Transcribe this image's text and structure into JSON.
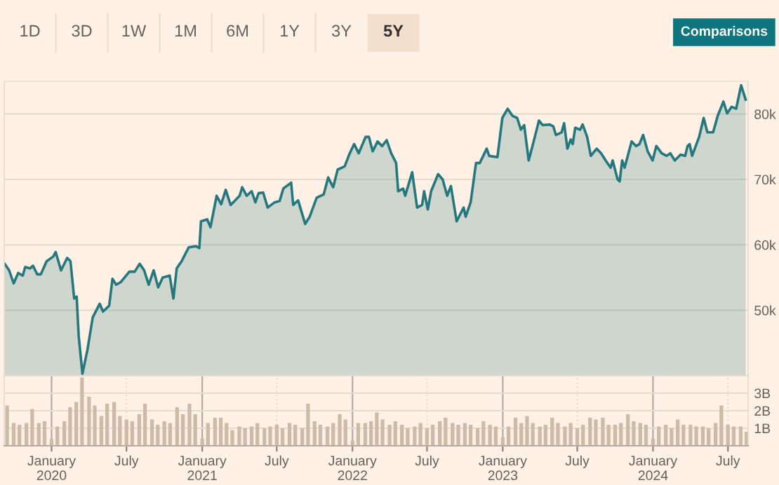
{
  "chart_data": [
    {
      "type": "area",
      "annotations": [
        "1D",
        "3D",
        "1W",
        "1M",
        "6M",
        "1Y",
        "3Y",
        "5Y",
        "Comparisons"
      ],
      "series": [
        {
          "color": "#26787f",
          "x": [
            "2019-09-09",
            "2019-09-20",
            "2019-10-01",
            "2019-10-12",
            "2019-10-23",
            "2019-10-29",
            "2019-11-10",
            "2019-11-17",
            "2019-11-27",
            "2019-12-06",
            "2019-12-20",
            "2020-01-05",
            "2020-01-11",
            "2020-01-24",
            "2020-02-08",
            "2020-02-16",
            "2020-02-25",
            "2020-03-02",
            "2020-03-07",
            "2020-03-16",
            "2020-03-28",
            "2020-04-10",
            "2020-04-27",
            "2020-05-05",
            "2020-05-20",
            "2020-05-28",
            "2020-06-06",
            "2020-06-17",
            "2020-07-08",
            "2020-07-21",
            "2020-08-02",
            "2020-08-13",
            "2020-08-24",
            "2020-09-05",
            "2020-09-16",
            "2020-09-27",
            "2020-10-14",
            "2020-10-23",
            "2020-10-31",
            "2020-11-12",
            "2020-11-29",
            "2020-12-16",
            "2020-12-25",
            "2020-12-29",
            "2021-01-13",
            "2021-01-21",
            "2021-02-05",
            "2021-02-16",
            "2021-02-27",
            "2021-03-11",
            "2021-04-02",
            "2021-04-08",
            "2021-04-19",
            "2021-05-01",
            "2021-05-10",
            "2021-05-18",
            "2021-05-29",
            "2021-06-09",
            "2021-06-26",
            "2021-07-08",
            "2021-07-17",
            "2021-08-05",
            "2021-08-10",
            "2021-08-22",
            "2021-09-08",
            "2021-09-19",
            "2021-10-06",
            "2021-10-23",
            "2021-11-03",
            "2021-11-15",
            "2021-11-26",
            "2021-12-13",
            "2021-12-24",
            "2022-01-05",
            "2022-01-16",
            "2022-02-02",
            "2022-02-10",
            "2022-02-19",
            "2022-03-03",
            "2022-03-14",
            "2022-03-25",
            "2022-04-05",
            "2022-04-17",
            "2022-04-22",
            "2022-05-04",
            "2022-05-09",
            "2022-05-26",
            "2022-06-07",
            "2022-06-19",
            "2022-06-24",
            "2022-07-03",
            "2022-07-11",
            "2022-07-28",
            "2022-08-08",
            "2022-08-19",
            "2022-08-28",
            "2022-09-11",
            "2022-09-28",
            "2022-10-03",
            "2022-10-15",
            "2022-10-28",
            "2022-11-06",
            "2022-11-23",
            "2022-11-29",
            "2022-12-19",
            "2022-12-31",
            "2023-01-13",
            "2023-01-25",
            "2023-02-05",
            "2023-02-14",
            "2023-02-22",
            "2023-03-05",
            "2023-03-17",
            "2023-03-30",
            "2023-04-08",
            "2023-04-25",
            "2023-05-04",
            "2023-05-10",
            "2023-05-24",
            "2023-05-30",
            "2023-06-07",
            "2023-06-15",
            "2023-06-20",
            "2023-06-26",
            "2023-07-08",
            "2023-07-14",
            "2023-07-25",
            "2023-08-03",
            "2023-08-17",
            "2023-08-28",
            "2023-09-08",
            "2023-09-20",
            "2023-09-25",
            "2023-10-07",
            "2023-10-12",
            "2023-10-18",
            "2023-10-24",
            "2023-11-10",
            "2023-11-21",
            "2023-11-29",
            "2023-12-08",
            "2023-12-19",
            "2023-12-31",
            "2024-01-09",
            "2024-01-22",
            "2024-02-03",
            "2024-02-12",
            "2024-02-23",
            "2024-03-08",
            "2024-03-19",
            "2024-03-25",
            "2024-03-30",
            "2024-04-05",
            "2024-04-22",
            "2024-05-03",
            "2024-05-12",
            "2024-05-26",
            "2024-06-06",
            "2024-06-20",
            "2024-06-29",
            "2024-07-10",
            "2024-07-21",
            "2024-08-02",
            "2024-08-13"
          ],
          "values": [
            57100,
            56100,
            54100,
            55700,
            55300,
            56600,
            56400,
            56800,
            55500,
            55500,
            57500,
            58200,
            58900,
            56100,
            58000,
            57500,
            51800,
            52100,
            46000,
            40300,
            43900,
            48900,
            51000,
            49800,
            50700,
            54800,
            53900,
            54300,
            55900,
            55900,
            57100,
            56100,
            53900,
            56100,
            53500,
            55000,
            55300,
            51800,
            56400,
            57500,
            59600,
            59800,
            59500,
            63600,
            63900,
            62700,
            67500,
            66200,
            68400,
            66100,
            67500,
            68800,
            67500,
            68200,
            66500,
            67900,
            68000,
            65700,
            66500,
            66700,
            68600,
            69500,
            66100,
            66800,
            63200,
            64300,
            67200,
            67700,
            70300,
            68800,
            71500,
            72000,
            73800,
            75400,
            74000,
            76500,
            76500,
            74300,
            75800,
            75100,
            76000,
            74000,
            72500,
            68200,
            68600,
            67500,
            71100,
            65700,
            66100,
            68200,
            65400,
            68200,
            70800,
            70000,
            67500,
            69000,
            63600,
            65700,
            64300,
            66500,
            72500,
            72500,
            74700,
            73600,
            73400,
            79400,
            80800,
            79700,
            79400,
            77600,
            78300,
            72900,
            75800,
            79000,
            78300,
            78400,
            78100,
            76800,
            77200,
            78600,
            74700,
            76100,
            75400,
            77900,
            77600,
            78400,
            76500,
            73600,
            74700,
            74000,
            72900,
            71800,
            72900,
            70000,
            69700,
            72900,
            71800,
            75800,
            75100,
            75400,
            76800,
            74300,
            72900,
            75100,
            74000,
            73600,
            74000,
            72900,
            73800,
            73600,
            75100,
            75400,
            73600,
            76500,
            79400,
            77200,
            77200,
            79700,
            81900,
            80100,
            81100,
            80800,
            84400,
            82200
          ]
        }
      ],
      "xlim": [
        "2019-09-08",
        "2024-08-19"
      ],
      "ylim": [
        40000,
        85000
      ],
      "yticks": [
        {
          "value": 50000,
          "label": "50k"
        },
        {
          "value": 60000,
          "label": "60k"
        },
        {
          "value": 70000,
          "label": "70k"
        },
        {
          "value": 80000,
          "label": "80k"
        }
      ],
      "tick_labels": "y",
      "grid": true
    },
    {
      "type": "bar",
      "x": [
        "2019-09-15",
        "2019-10-01",
        "2019-10-15",
        "2019-11-01",
        "2019-11-15",
        "2019-12-01",
        "2019-12-15",
        "2020-01-01",
        "2020-01-15",
        "2020-02-01",
        "2020-02-15",
        "2020-03-01",
        "2020-03-15",
        "2020-04-01",
        "2020-04-15",
        "2020-05-01",
        "2020-05-15",
        "2020-06-01",
        "2020-06-15",
        "2020-07-01",
        "2020-07-15",
        "2020-08-01",
        "2020-08-15",
        "2020-09-01",
        "2020-09-15",
        "2020-10-01",
        "2020-10-15",
        "2020-11-01",
        "2020-11-15",
        "2020-12-01",
        "2020-12-15",
        "2021-01-01",
        "2021-01-15",
        "2021-02-01",
        "2021-02-15",
        "2021-03-01",
        "2021-03-15",
        "2021-04-01",
        "2021-04-15",
        "2021-05-01",
        "2021-05-15",
        "2021-06-01",
        "2021-06-15",
        "2021-07-01",
        "2021-07-15",
        "2021-08-01",
        "2021-08-15",
        "2021-09-01",
        "2021-09-15",
        "2021-10-01",
        "2021-10-15",
        "2021-11-01",
        "2021-11-15",
        "2021-12-01",
        "2021-12-15",
        "2022-01-01",
        "2022-01-15",
        "2022-02-01",
        "2022-02-15",
        "2022-03-01",
        "2022-03-15",
        "2022-04-01",
        "2022-04-15",
        "2022-05-01",
        "2022-05-15",
        "2022-06-01",
        "2022-06-15",
        "2022-07-01",
        "2022-07-15",
        "2022-08-01",
        "2022-08-15",
        "2022-09-01",
        "2022-09-15",
        "2022-10-01",
        "2022-10-15",
        "2022-11-01",
        "2022-11-15",
        "2022-12-01",
        "2022-12-15",
        "2023-01-01",
        "2023-01-15",
        "2023-02-01",
        "2023-02-15",
        "2023-03-01",
        "2023-03-15",
        "2023-04-01",
        "2023-04-15",
        "2023-05-01",
        "2023-05-15",
        "2023-06-01",
        "2023-06-15",
        "2023-07-01",
        "2023-07-15",
        "2023-08-01",
        "2023-08-15",
        "2023-09-01",
        "2023-09-15",
        "2023-10-01",
        "2023-10-15",
        "2023-11-01",
        "2023-11-15",
        "2023-12-01",
        "2023-12-15",
        "2024-01-01",
        "2024-01-15",
        "2024-02-01",
        "2024-02-15",
        "2024-03-01",
        "2024-03-15",
        "2024-04-01",
        "2024-04-15",
        "2024-05-01",
        "2024-05-15",
        "2024-06-01",
        "2024-06-15",
        "2024-07-01",
        "2024-07-15",
        "2024-08-01",
        "2024-08-15"
      ],
      "series": [
        {
          "color": "#cdbba8",
          "values": [
            2.3,
            1.3,
            1.2,
            1.3,
            2.1,
            1.3,
            1.4,
            0.4,
            1.1,
            1.4,
            2.2,
            2.5,
            3.9,
            2.8,
            2.3,
            1.7,
            2.4,
            2.5,
            1.7,
            1.5,
            1.4,
            1.8,
            2.4,
            1.5,
            1.2,
            1.4,
            1.3,
            2.2,
            1.8,
            2.4,
            1.8,
            0.4,
            1.3,
            1.6,
            1.6,
            1.3,
            0.9,
            1.1,
            1.0,
            1.1,
            1.3,
            1.0,
            1.1,
            1.2,
            1.0,
            1.3,
            1.2,
            1.0,
            2.4,
            1.4,
            1.2,
            1.1,
            1.3,
            1.8,
            1.5,
            0.3,
            1.3,
            1.3,
            1.4,
            1.9,
            1.5,
            1.2,
            1.4,
            1.2,
            1.0,
            1.1,
            1.3,
            1.0,
            1.2,
            1.4,
            1.6,
            1.3,
            1.2,
            1.3,
            1.2,
            1.0,
            1.4,
            1.2,
            1.1,
            0.5,
            1.1,
            1.6,
            1.3,
            1.7,
            1.3,
            1.1,
            1.2,
            1.6,
            1.3,
            1.1,
            1.3,
            1.0,
            1.2,
            1.6,
            1.5,
            1.6,
            1.2,
            1.2,
            1.3,
            1.8,
            1.4,
            1.3,
            1.2,
            0.4,
            1.1,
            1.2,
            1.0,
            1.5,
            1.2,
            1.2,
            1.1,
            1.1,
            1.0,
            1.3,
            2.3,
            1.2,
            1.1,
            1.1,
            0.8
          ]
        }
      ],
      "xlim": [
        "2019-09-08",
        "2024-08-19"
      ],
      "ylim": [
        0,
        4
      ],
      "yticks": [
        {
          "value": 1,
          "label": "1B"
        },
        {
          "value": 2,
          "label": "2B"
        },
        {
          "value": 3,
          "label": "3B"
        }
      ],
      "xticks": [
        {
          "value": "2020-01-01",
          "label": "January\n2020"
        },
        {
          "value": "2020-07-01",
          "label": "July"
        },
        {
          "value": "2021-01-01",
          "label": "January\n2021"
        },
        {
          "value": "2021-07-01",
          "label": "July"
        },
        {
          "value": "2022-01-01",
          "label": "January\n2022"
        },
        {
          "value": "2022-07-01",
          "label": "July"
        },
        {
          "value": "2023-01-01",
          "label": "January\n2023"
        },
        {
          "value": "2023-07-01",
          "label": "July"
        },
        {
          "value": "2024-01-01",
          "label": "January\n2024"
        },
        {
          "value": "2024-07-01",
          "label": "July"
        }
      ],
      "grid": true
    }
  ]
}
